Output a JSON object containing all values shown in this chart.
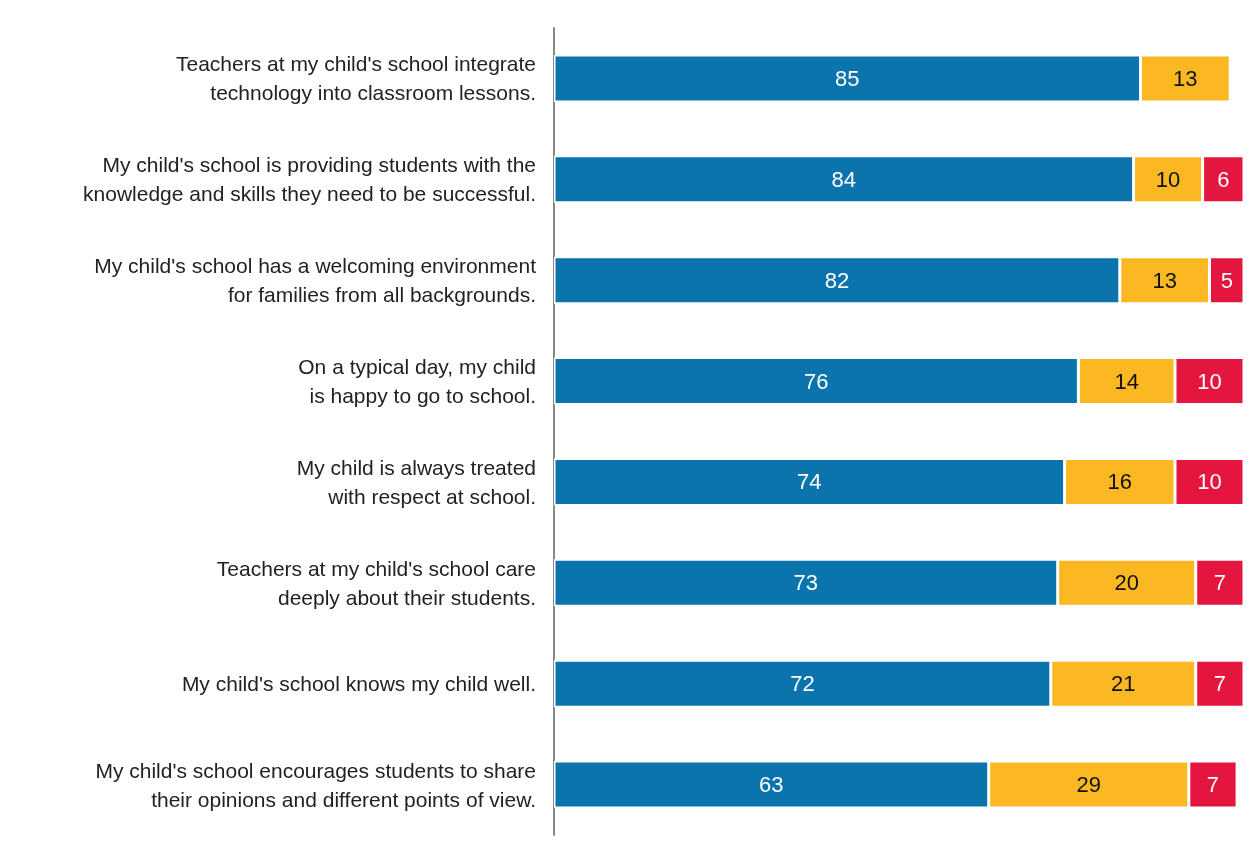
{
  "chart_data": {
    "type": "bar",
    "orientation": "horizontal",
    "stacked": true,
    "data_labels": true,
    "categories": [
      "Teachers at my child's school integrate\ntechnology into classroom lessons.",
      "My child's school is providing students with the\nknowledge and skills they need to be successful.",
      "My child's school has a welcoming environment\nfor families from all backgrounds.",
      "On a typical day, my child\nis happy to go to school.",
      "My child is always treated\nwith respect at school.",
      "Teachers at my child's school care\ndeeply about their students.",
      "My child's school knows my child well.",
      "My child's school encourages students to share\ntheir opinions and different points of view."
    ],
    "series": [
      {
        "color": "#0b74ad",
        "values": [
          85,
          84,
          82,
          76,
          74,
          73,
          72,
          63
        ]
      },
      {
        "color": "#fbb822",
        "values": [
          13,
          10,
          13,
          14,
          16,
          20,
          21,
          29
        ]
      },
      {
        "color": "#e4163f",
        "values": [
          null,
          6,
          5,
          10,
          10,
          7,
          7,
          7
        ]
      }
    ]
  }
}
